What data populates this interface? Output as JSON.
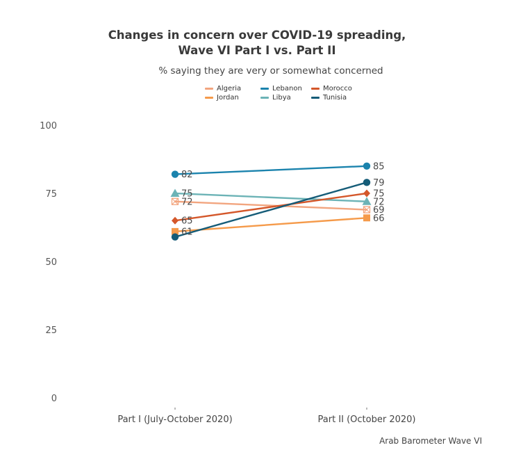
{
  "chart_data": {
    "type": "line",
    "title_line1": "Changes in concern over COVID-19 spreading,",
    "title_line2": "Wave VI Part I vs. Part II",
    "subtitle": "% saying they are very or somewhat concerned",
    "caption": "Arab Barometer Wave VI",
    "categories": [
      "Part I (July-October 2020)",
      "Part II (October 2020)"
    ],
    "ylim": [
      0,
      100
    ],
    "yticks": [
      0,
      25,
      50,
      75,
      100
    ],
    "grid": false,
    "legend_position": "top",
    "series": [
      {
        "name": "Algeria",
        "values": [
          72,
          69
        ],
        "color": "#f2a57f",
        "marker": "square-open"
      },
      {
        "name": "Jordan",
        "values": [
          61,
          66
        ],
        "color": "#f59a4a",
        "marker": "square"
      },
      {
        "name": "Lebanon",
        "values": [
          82,
          85
        ],
        "color": "#1b83ad",
        "marker": "circle"
      },
      {
        "name": "Libya",
        "values": [
          75,
          72
        ],
        "color": "#6cb3b6",
        "marker": "triangle"
      },
      {
        "name": "Morocco",
        "values": [
          65,
          75
        ],
        "color": "#d4572a",
        "marker": "diamond"
      },
      {
        "name": "Tunisia",
        "values": [
          59,
          79
        ],
        "color": "#155c78",
        "marker": "circle"
      }
    ],
    "data_labels": [
      {
        "series": "Lebanon",
        "index": 0,
        "text": "82"
      },
      {
        "series": "Libya",
        "index": 0,
        "text": "75"
      },
      {
        "series": "Algeria",
        "index": 0,
        "text": "72"
      },
      {
        "series": "Morocco",
        "index": 0,
        "text": "65"
      },
      {
        "series": "Jordan",
        "index": 0,
        "text": "61"
      },
      {
        "series": "Lebanon",
        "index": 1,
        "text": "85"
      },
      {
        "series": "Tunisia",
        "index": 1,
        "text": "79"
      },
      {
        "series": "Morocco",
        "index": 1,
        "text": "75"
      },
      {
        "series": "Libya",
        "index": 1,
        "text": "72"
      },
      {
        "series": "Algeria",
        "index": 1,
        "text": "69"
      },
      {
        "series": "Jordan",
        "index": 1,
        "text": "66"
      }
    ]
  }
}
